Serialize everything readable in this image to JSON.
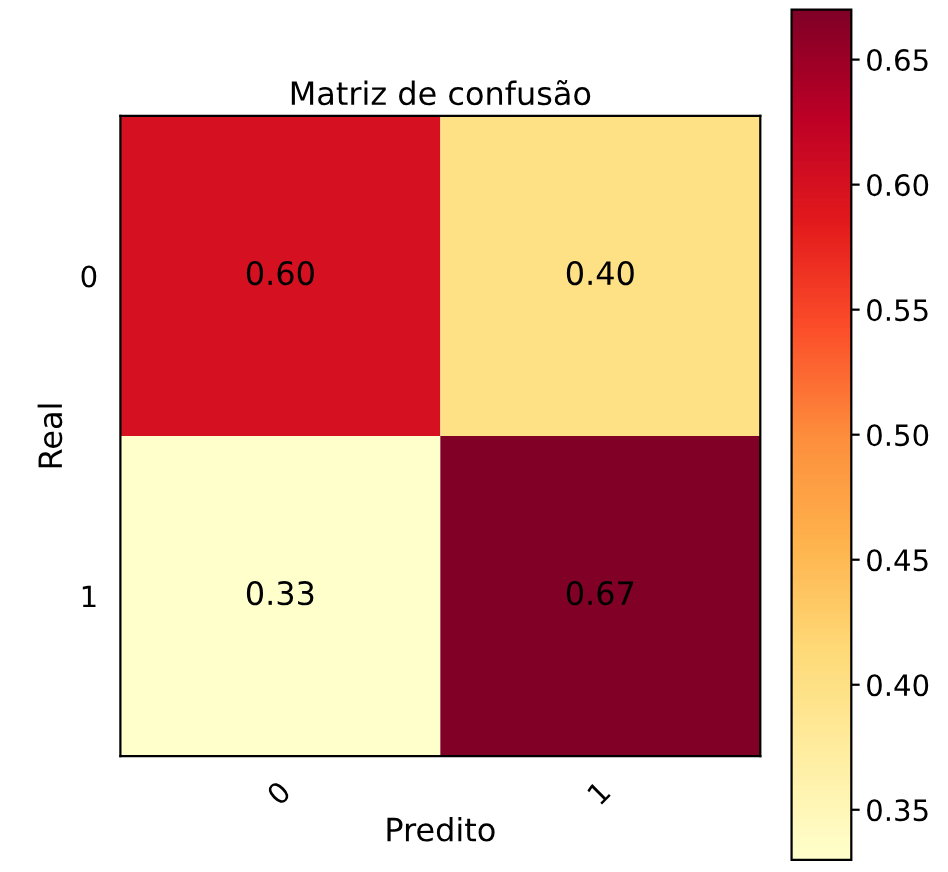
{
  "chart_data": {
    "type": "heatmap",
    "title": "Matriz de confusão",
    "xlabel": "Predito",
    "ylabel": "Real",
    "categories": [
      "0",
      "1"
    ],
    "y_categories": [
      "0",
      "1"
    ],
    "cells": [
      [
        0.6,
        0.4
      ],
      [
        0.33,
        0.67
      ]
    ],
    "cell_labels": [
      [
        "0.60",
        "0.40"
      ],
      [
        "0.33",
        "0.67"
      ]
    ],
    "clim": [
      0.33,
      0.67
    ],
    "cticks": [
      {
        "value": 0.35,
        "label": "0.35"
      },
      {
        "value": 0.4,
        "label": "0.40"
      },
      {
        "value": 0.45,
        "label": "0.45"
      },
      {
        "value": 0.5,
        "label": "0.50"
      },
      {
        "value": 0.55,
        "label": "0.55"
      },
      {
        "value": 0.6,
        "label": "0.60"
      },
      {
        "value": 0.65,
        "label": "0.65"
      }
    ]
  }
}
